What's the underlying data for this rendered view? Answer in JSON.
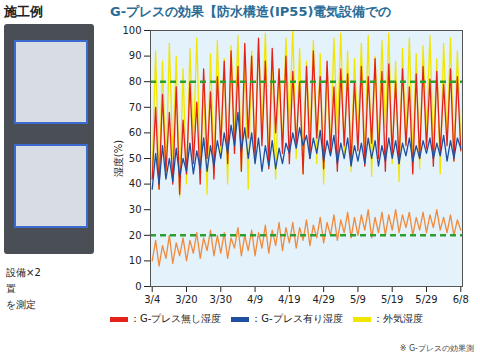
{
  "chart_data": {
    "type": "line",
    "title": "G-プレスの効果【防水構造(IP55)電気設備での",
    "y_label": "湿度(%)",
    "footnote": "※ G-プレスの効果測",
    "left_panel": {
      "heading": "施工例",
      "notes": [
        "設備×2",
        "置",
        "を測定"
      ]
    },
    "categories": [
      "3/4",
      null,
      null,
      null,
      null,
      null,
      null,
      null,
      null,
      null,
      "3/20",
      null,
      null,
      null,
      null,
      null,
      null,
      null,
      null,
      null,
      "3/30",
      null,
      null,
      null,
      null,
      null,
      null,
      null,
      null,
      null,
      "4/9",
      null,
      null,
      null,
      null,
      null,
      null,
      null,
      null,
      null,
      "4/19",
      null,
      null,
      null,
      null,
      null,
      null,
      null,
      null,
      null,
      "4/29",
      null,
      null,
      null,
      null,
      null,
      null,
      null,
      null,
      null,
      "5/9",
      null,
      null,
      null,
      null,
      null,
      null,
      null,
      null,
      null,
      "5/19",
      null,
      null,
      null,
      null,
      null,
      null,
      null,
      null,
      null,
      "5/29",
      null,
      null,
      null,
      null,
      null,
      null,
      null,
      null,
      null,
      "6/8"
    ],
    "ylim": [
      0,
      100
    ],
    "yticks": [
      0,
      10,
      20,
      30,
      40,
      50,
      60,
      70,
      80,
      90,
      100
    ],
    "grid": false,
    "legend": "bottom",
    "reference_lines": {
      "values": [
        20,
        80
      ],
      "color": "#2ca02c",
      "line_style": "dashed"
    },
    "series": [
      {
        "name": "：外気湿度",
        "color": "#f2e600",
        "values": [
          45,
          92,
          38,
          88,
          42,
          95,
          50,
          90,
          35,
          85,
          40,
          93,
          55,
          97,
          48,
          80,
          36,
          91,
          44,
          96,
          52,
          89,
          40,
          94,
          58,
          98,
          45,
          87,
          38,
          92,
          50,
          96,
          60,
          99,
          47,
          90,
          42,
          85,
          55,
          97,
          62,
          100,
          50,
          93,
          44,
          88,
          57,
          96,
          48,
          91,
          40,
          86,
          53,
          97,
          60,
          99,
          52,
          92,
          45,
          89,
          58,
          95,
          50,
          98,
          43,
          90,
          55,
          96,
          62,
          99,
          48,
          88,
          41,
          93,
          56,
          97,
          50,
          91,
          46,
          94,
          60,
          98,
          52,
          89,
          44,
          95,
          57,
          97,
          49,
          92,
          55
        ]
      },
      {
        "name": "：G-プレス無し湿度",
        "color": "#e32219",
        "values": [
          42,
          70,
          38,
          75,
          45,
          68,
          40,
          78,
          36,
          65,
          44,
          80,
          48,
          72,
          40,
          85,
          50,
          76,
          42,
          82,
          55,
          88,
          48,
          92,
          52,
          86,
          45,
          95,
          58,
          90,
          50,
          97,
          55,
          88,
          46,
          93,
          60,
          85,
          52,
          90,
          48,
          84,
          55,
          80,
          44,
          86,
          50,
          92,
          58,
          82,
          46,
          88,
          52,
          78,
          45,
          85,
          55,
          83,
          48,
          80,
          53,
          86,
          47,
          82,
          56,
          89,
          50,
          84,
          45,
          87,
          52,
          80,
          48,
          85,
          55,
          78,
          44,
          83,
          50,
          86,
          54,
          81,
          47,
          84,
          52,
          79,
          55,
          85,
          49,
          82,
          53
        ]
      },
      {
        "name": "：G-プレス有り湿度",
        "color": "#1f4fa0",
        "values": [
          38,
          52,
          40,
          55,
          42,
          50,
          41,
          54,
          43,
          50,
          45,
          56,
          44,
          53,
          46,
          58,
          45,
          55,
          47,
          57,
          50,
          60,
          52,
          63,
          55,
          68,
          53,
          62,
          50,
          60,
          48,
          58,
          45,
          55,
          47,
          57,
          46,
          54,
          48,
          56,
          52,
          60,
          54,
          62,
          55,
          59,
          50,
          58,
          52,
          61,
          49,
          57,
          51,
          59,
          48,
          56,
          50,
          58,
          47,
          55,
          49,
          56,
          48,
          58,
          50,
          57,
          47,
          55,
          49,
          58,
          50,
          57,
          48,
          56,
          51,
          58,
          49,
          55,
          50,
          57,
          52,
          58,
          50,
          56,
          51,
          59,
          49,
          57,
          50,
          58,
          54
        ]
      },
      {
        "color": "#f08a3c",
        "values": [
          10,
          18,
          8,
          16,
          11,
          20,
          9,
          17,
          12,
          19,
          10,
          18,
          13,
          21,
          11,
          19,
          14,
          22,
          12,
          20,
          13,
          21,
          11,
          19,
          15,
          23,
          12,
          20,
          14,
          22,
          12,
          21,
          15,
          24,
          13,
          22,
          16,
          25,
          14,
          23,
          17,
          25,
          15,
          23,
          18,
          26,
          16,
          24,
          19,
          27,
          17,
          25,
          20,
          28,
          18,
          26,
          21,
          29,
          19,
          27,
          20,
          28,
          22,
          30,
          19,
          27,
          21,
          29,
          20,
          28,
          22,
          30,
          21,
          28,
          23,
          29,
          20,
          27,
          22,
          29,
          21,
          28,
          23,
          30,
          22,
          27,
          21,
          28,
          20,
          26,
          22
        ]
      }
    ]
  }
}
